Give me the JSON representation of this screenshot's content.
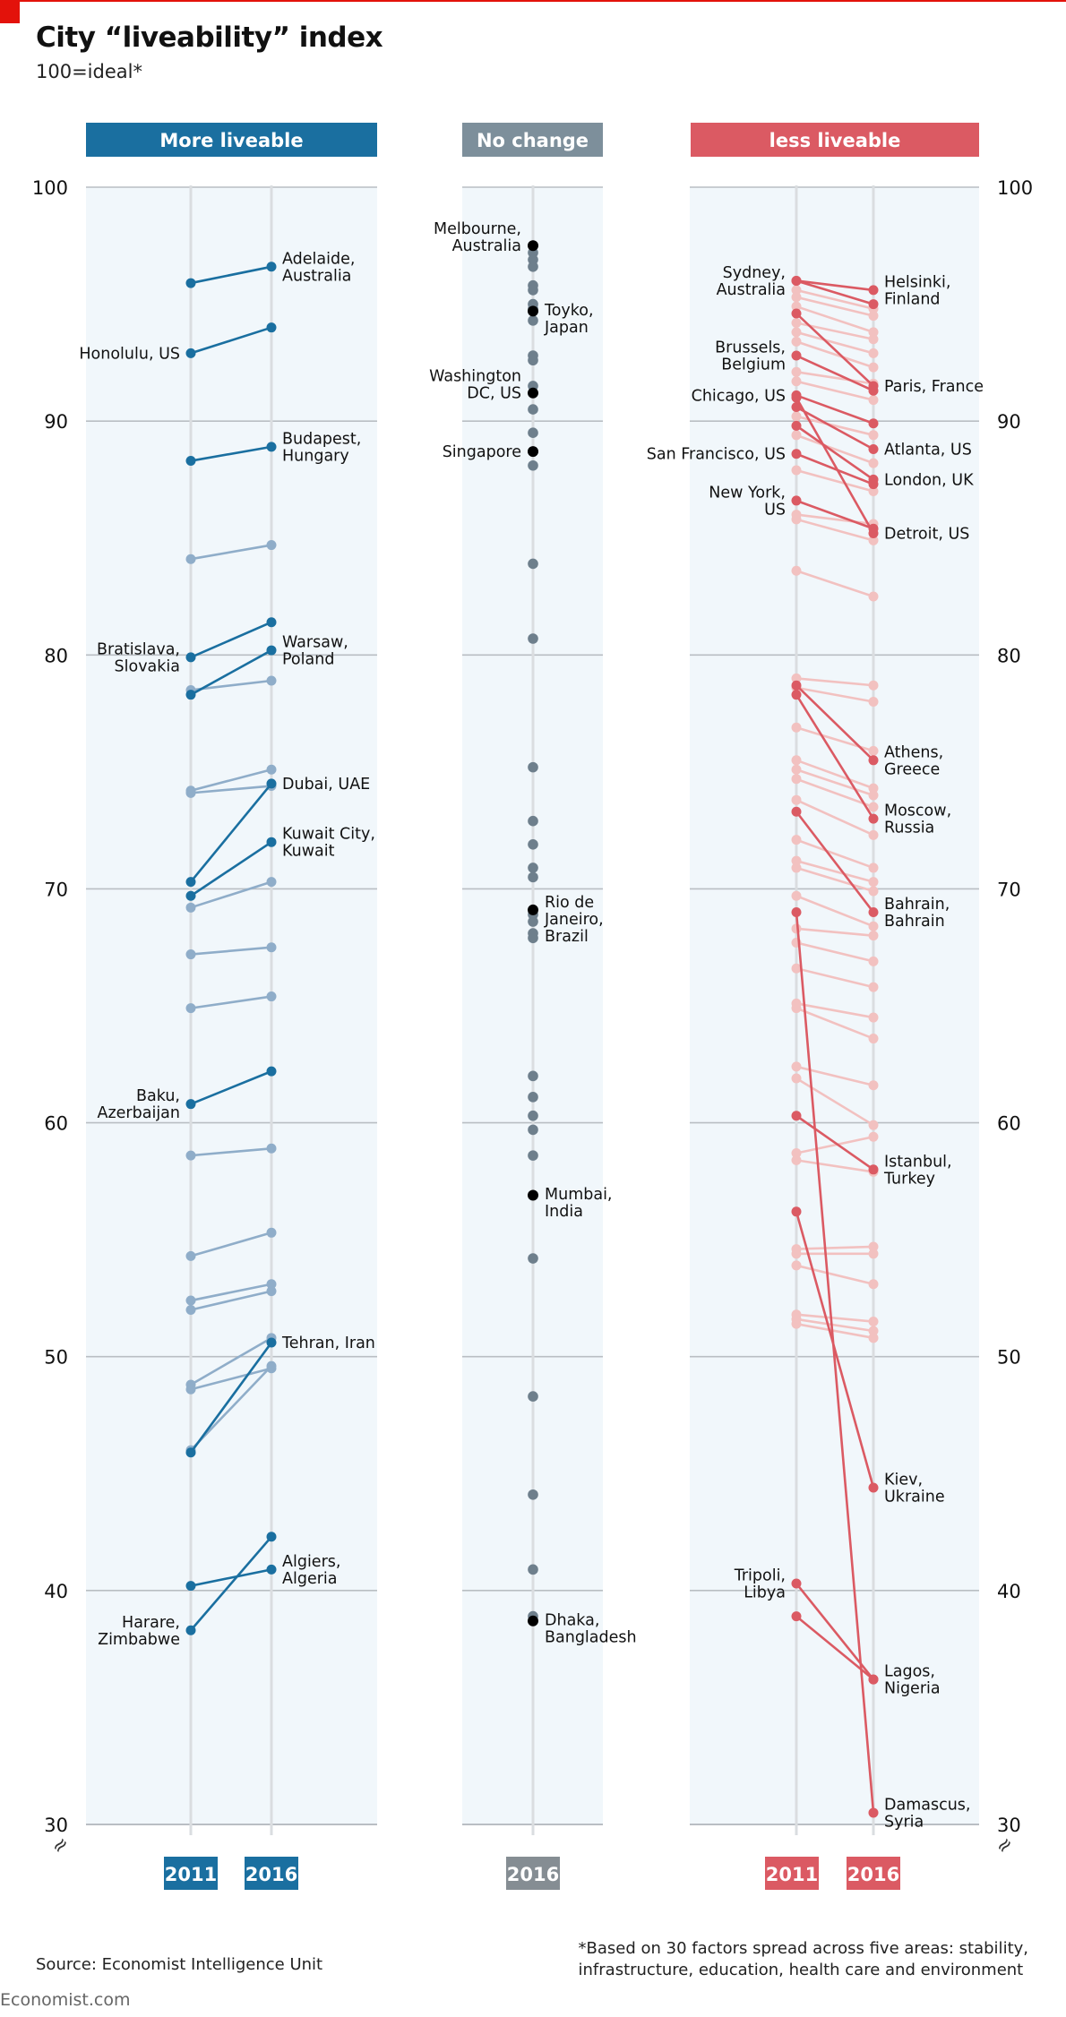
{
  "title": "City “liveability” index",
  "subtitle": "100=ideal*",
  "source": "Source: Economist Intelligence Unit",
  "footnote": [
    "*Based on 30 factors spread across five areas: stability,",
    "infrastructure, education, health care and environment"
  ],
  "brand": "Economist.com",
  "colors": {
    "blue": "#1a6fa0",
    "blue_light": "#8fadc9",
    "grey": "#7c8f9c",
    "grey_dot": "#6e7f8c",
    "red": "#db5a63",
    "red_light": "#f2c1c0",
    "black": "#000000",
    "bg_panel": "#f1f7fb",
    "grid": "#b9bec3"
  },
  "chart_data": [
    {
      "type": "line",
      "panel": "More liveable",
      "x": [
        "2011",
        "2016"
      ],
      "ylim": [
        30,
        100
      ],
      "yticks": [
        100,
        90,
        80,
        70,
        60,
        50,
        40,
        30
      ],
      "axis_break_symbol": "≈",
      "series": [
        {
          "name": "Adelaide, Australia",
          "values": [
            95.9,
            96.6
          ],
          "highlight": true,
          "label_side": "right",
          "label": [
            "Adelaide,",
            "Australia"
          ]
        },
        {
          "name": "Honolulu, US",
          "values": [
            92.9,
            94.0
          ],
          "highlight": true,
          "label_side": "left",
          "label": [
            "Honolulu, US"
          ]
        },
        {
          "name": "Budapest, Hungary",
          "values": [
            88.3,
            88.9
          ],
          "highlight": true,
          "label_side": "right",
          "label": [
            "Budapest,",
            "Hungary"
          ]
        },
        {
          "name": "",
          "values": [
            84.1,
            84.7
          ],
          "highlight": false
        },
        {
          "name": "Bratislava, Slovakia",
          "values": [
            79.9,
            81.4
          ],
          "highlight": true,
          "label_side": "left",
          "label": [
            "Bratislava,",
            "Slovakia"
          ]
        },
        {
          "name": "Warsaw, Poland",
          "values": [
            78.3,
            80.2
          ],
          "highlight": true,
          "label_side": "right",
          "label": [
            "Warsaw,",
            "Poland"
          ]
        },
        {
          "name": "",
          "values": [
            78.5,
            78.9
          ],
          "highlight": false
        },
        {
          "name": "",
          "values": [
            74.2,
            75.1
          ],
          "highlight": false
        },
        {
          "name": "",
          "values": [
            74.1,
            74.4
          ],
          "highlight": false
        },
        {
          "name": "Dubai, UAE",
          "values": [
            70.3,
            74.5
          ],
          "highlight": true,
          "label_side": "right",
          "label": [
            "Dubai, UAE"
          ]
        },
        {
          "name": "Kuwait City, Kuwait",
          "values": [
            69.7,
            72.0
          ],
          "highlight": true,
          "label_side": "right",
          "label": [
            "Kuwait City,",
            "Kuwait"
          ]
        },
        {
          "name": "",
          "values": [
            69.2,
            70.3
          ],
          "highlight": false
        },
        {
          "name": "",
          "values": [
            67.2,
            67.5
          ],
          "highlight": false
        },
        {
          "name": "",
          "values": [
            64.9,
            65.4
          ],
          "highlight": false
        },
        {
          "name": "Baku, Azerbaijan",
          "values": [
            60.8,
            62.2
          ],
          "highlight": true,
          "label_side": "left",
          "label": [
            "Baku,",
            "Azerbaijan"
          ]
        },
        {
          "name": "",
          "values": [
            58.6,
            58.9
          ],
          "highlight": false
        },
        {
          "name": "",
          "values": [
            54.3,
            55.3
          ],
          "highlight": false
        },
        {
          "name": "",
          "values": [
            52.4,
            53.1
          ],
          "highlight": false
        },
        {
          "name": "",
          "values": [
            52.0,
            52.8
          ],
          "highlight": false
        },
        {
          "name": "",
          "values": [
            48.8,
            50.8
          ],
          "highlight": false
        },
        {
          "name": "",
          "values": [
            48.6,
            49.5
          ],
          "highlight": false
        },
        {
          "name": "",
          "values": [
            46.0,
            49.6
          ],
          "highlight": false
        },
        {
          "name": "Tehran, Iran",
          "values": [
            45.9,
            50.6
          ],
          "highlight": true,
          "label_side": "right",
          "label": [
            "Tehran, Iran"
          ]
        },
        {
          "name": "Algiers, Algeria",
          "values": [
            40.2,
            40.9
          ],
          "highlight": true,
          "label_side": "right",
          "label": [
            "Algiers,",
            "Algeria"
          ]
        },
        {
          "name": "Harare, Zimbabwe",
          "values": [
            38.3,
            42.3
          ],
          "highlight": true,
          "label_side": "left",
          "label": [
            "Harare,",
            "Zimbabwe"
          ]
        }
      ]
    },
    {
      "type": "scatter",
      "panel": "No change",
      "x": [
        "2016"
      ],
      "ylim": [
        30,
        100
      ],
      "labeled": [
        {
          "name": "Melbourne, Australia",
          "value": 97.5,
          "label_side": "left",
          "label": [
            "Melbourne,",
            "Australia"
          ]
        },
        {
          "name": "Toyko, Japan",
          "value": 94.7,
          "label_side": "right",
          "label": [
            "Toyko,",
            "Japan"
          ]
        },
        {
          "name": "Washington DC, US",
          "value": 91.2,
          "label_side": "left",
          "label": [
            "Washington",
            "DC, US"
          ]
        },
        {
          "name": "Singapore",
          "value": 88.7,
          "label_side": "left",
          "label": [
            "Singapore"
          ]
        },
        {
          "name": "Rio de Janeiro, Brazil",
          "value": 69.1,
          "label_side": "right",
          "label": [
            "Rio de",
            "Janeiro,",
            "Brazil"
          ]
        },
        {
          "name": "Mumbai, India",
          "value": 56.9,
          "label_side": "right",
          "label": [
            "Mumbai,",
            "India"
          ]
        },
        {
          "name": "Dhaka, Bangladesh",
          "value": 38.7,
          "label_side": "right",
          "label": [
            "Dhaka,",
            "Bangladesh"
          ]
        }
      ],
      "values": [
        97.2,
        96.9,
        96.6,
        95.8,
        95.6,
        95.0,
        94.8,
        94.3,
        92.8,
        92.6,
        91.5,
        90.5,
        89.5,
        88.1,
        83.9,
        80.7,
        75.2,
        72.9,
        71.9,
        70.9,
        70.5,
        68.9,
        68.6,
        68.1,
        67.9,
        62.0,
        61.1,
        60.3,
        59.7,
        58.6,
        54.2,
        48.3,
        44.1,
        40.9,
        38.9
      ]
    },
    {
      "type": "line",
      "panel": "less liveable",
      "x": [
        "2011",
        "2016"
      ],
      "ylim": [
        30,
        100
      ],
      "yticks": [
        100,
        90,
        80,
        70,
        60,
        50,
        40,
        30
      ],
      "axis_break_symbol": "≈",
      "series": [
        {
          "name": "Helsinki, Finland",
          "values": [
            96.0,
            95.6
          ],
          "highlight": true,
          "label_side": "right",
          "label": [
            "Helsinki,",
            "Finland"
          ]
        },
        {
          "name": "Sydney, Australia",
          "values": [
            96.0,
            95.0
          ],
          "highlight": true,
          "label_side": "left",
          "label": [
            "Sydney,",
            "Australia"
          ]
        },
        {
          "name": "Paris, France",
          "values": [
            94.6,
            91.5
          ],
          "highlight": true,
          "label_side": "right",
          "label": [
            "Paris, France"
          ]
        },
        {
          "name": "Brussels, Belgium",
          "values": [
            92.8,
            91.3
          ],
          "highlight": true,
          "label_side": "left",
          "label": [
            "Brussels,",
            "Belgium"
          ]
        },
        {
          "name": "Chicago, US",
          "values": [
            91.1,
            89.9
          ],
          "highlight": true,
          "label_side": "left",
          "label": [
            "Chicago, US"
          ]
        },
        {
          "name": "Atlanta, US",
          "values": [
            90.6,
            88.8
          ],
          "highlight": true,
          "label_side": "right",
          "label": [
            "Atlanta, US"
          ]
        },
        {
          "name": "London, UK",
          "values": [
            89.8,
            87.5
          ],
          "highlight": true,
          "label_side": "right",
          "label": [
            "London, UK"
          ]
        },
        {
          "name": "San Francisco, US",
          "values": [
            88.6,
            87.3
          ],
          "highlight": true,
          "label_side": "left",
          "label": [
            "San Francisco, US"
          ]
        },
        {
          "name": "New York, US",
          "values": [
            86.6,
            85.4
          ],
          "highlight": true,
          "label_side": "left",
          "label": [
            "New York,",
            "US"
          ]
        },
        {
          "name": "Detroit, US",
          "values": [
            91.0,
            85.2
          ],
          "highlight": true,
          "label_side": "right",
          "label": [
            "Detroit, US"
          ]
        },
        {
          "name": "Athens, Greece",
          "values": [
            78.7,
            75.5
          ],
          "highlight": true,
          "label_side": "right",
          "label": [
            "Athens,",
            "Greece"
          ]
        },
        {
          "name": "Moscow, Russia",
          "values": [
            78.3,
            73.0
          ],
          "highlight": true,
          "label_side": "right",
          "label": [
            "Moscow,",
            "Russia"
          ]
        },
        {
          "name": "Bahrain, Bahrain",
          "values": [
            73.3,
            69.0
          ],
          "highlight": true,
          "label_side": "right",
          "label": [
            "Bahrain,",
            "Bahrain"
          ]
        },
        {
          "name": "Istanbul, Turkey",
          "values": [
            60.3,
            58.0
          ],
          "highlight": true,
          "label_side": "right",
          "label": [
            "Istanbul,",
            "Turkey"
          ]
        },
        {
          "name": "Kiev, Ukraine",
          "values": [
            56.2,
            44.4
          ],
          "highlight": true,
          "label_side": "right",
          "label": [
            "Kiev,",
            "Ukraine"
          ]
        },
        {
          "name": "Tripoli, Libya",
          "values": [
            40.3,
            36.2
          ],
          "highlight": true,
          "label_side": "left",
          "label": [
            "Tripoli,",
            "Libya"
          ]
        },
        {
          "name": "Lagos, Nigeria",
          "values": [
            38.9,
            36.2
          ],
          "highlight": true,
          "label_side": "right",
          "label": [
            "Lagos,",
            "Nigeria"
          ]
        },
        {
          "name": "Damascus, Syria",
          "values": [
            69.0,
            30.5
          ],
          "highlight": true,
          "label_side": "right",
          "label": [
            "Damascus,",
            "Syria"
          ]
        },
        {
          "name": "",
          "values": [
            95.6,
            94.8
          ],
          "highlight": false
        },
        {
          "name": "",
          "values": [
            95.3,
            94.5
          ],
          "highlight": false
        },
        {
          "name": "",
          "values": [
            94.9,
            93.8
          ],
          "highlight": false
        },
        {
          "name": "",
          "values": [
            94.2,
            93.5
          ],
          "highlight": false
        },
        {
          "name": "",
          "values": [
            93.8,
            92.9
          ],
          "highlight": false
        },
        {
          "name": "",
          "values": [
            93.4,
            92.3
          ],
          "highlight": false
        },
        {
          "name": "",
          "values": [
            92.1,
            91.6
          ],
          "highlight": false
        },
        {
          "name": "",
          "values": [
            91.7,
            90.9
          ],
          "highlight": false
        },
        {
          "name": "",
          "values": [
            90.2,
            89.4
          ],
          "highlight": false
        },
        {
          "name": "",
          "values": [
            89.4,
            88.2
          ],
          "highlight": false
        },
        {
          "name": "",
          "values": [
            87.9,
            87.0
          ],
          "highlight": false
        },
        {
          "name": "",
          "values": [
            86.0,
            85.6
          ],
          "highlight": false
        },
        {
          "name": "",
          "values": [
            85.8,
            84.9
          ],
          "highlight": false
        },
        {
          "name": "",
          "values": [
            83.6,
            82.5
          ],
          "highlight": false
        },
        {
          "name": "",
          "values": [
            79.0,
            78.7
          ],
          "highlight": false
        },
        {
          "name": "",
          "values": [
            78.6,
            78.0
          ],
          "highlight": false
        },
        {
          "name": "",
          "values": [
            76.9,
            75.9
          ],
          "highlight": false
        },
        {
          "name": "",
          "values": [
            75.5,
            74.3
          ],
          "highlight": false
        },
        {
          "name": "",
          "values": [
            75.1,
            74.0
          ],
          "highlight": false
        },
        {
          "name": "",
          "values": [
            74.7,
            73.5
          ],
          "highlight": false
        },
        {
          "name": "",
          "values": [
            73.8,
            72.3
          ],
          "highlight": false
        },
        {
          "name": "",
          "values": [
            72.1,
            70.9
          ],
          "highlight": false
        },
        {
          "name": "",
          "values": [
            71.2,
            70.3
          ],
          "highlight": false
        },
        {
          "name": "",
          "values": [
            70.9,
            69.9
          ],
          "highlight": false
        },
        {
          "name": "",
          "values": [
            69.7,
            68.4
          ],
          "highlight": false
        },
        {
          "name": "",
          "values": [
            68.3,
            68.0
          ],
          "highlight": false
        },
        {
          "name": "",
          "values": [
            67.7,
            66.9
          ],
          "highlight": false
        },
        {
          "name": "",
          "values": [
            66.6,
            65.8
          ],
          "highlight": false
        },
        {
          "name": "",
          "values": [
            65.1,
            64.5
          ],
          "highlight": false
        },
        {
          "name": "",
          "values": [
            64.9,
            63.6
          ],
          "highlight": false
        },
        {
          "name": "",
          "values": [
            62.4,
            61.6
          ],
          "highlight": false
        },
        {
          "name": "",
          "values": [
            61.9,
            59.9
          ],
          "highlight": false
        },
        {
          "name": "",
          "values": [
            58.7,
            59.4
          ],
          "highlight": false
        },
        {
          "name": "",
          "values": [
            58.4,
            57.9
          ],
          "highlight": false
        },
        {
          "name": "",
          "values": [
            54.6,
            54.7
          ],
          "highlight": false
        },
        {
          "name": "",
          "values": [
            54.4,
            54.4
          ],
          "highlight": false
        },
        {
          "name": "",
          "values": [
            53.9,
            53.1
          ],
          "highlight": false
        },
        {
          "name": "",
          "values": [
            51.8,
            51.5
          ],
          "highlight": false
        },
        {
          "name": "",
          "values": [
            51.6,
            51.1
          ],
          "highlight": false
        },
        {
          "name": "",
          "values": [
            51.4,
            50.8
          ],
          "highlight": false
        }
      ]
    }
  ]
}
